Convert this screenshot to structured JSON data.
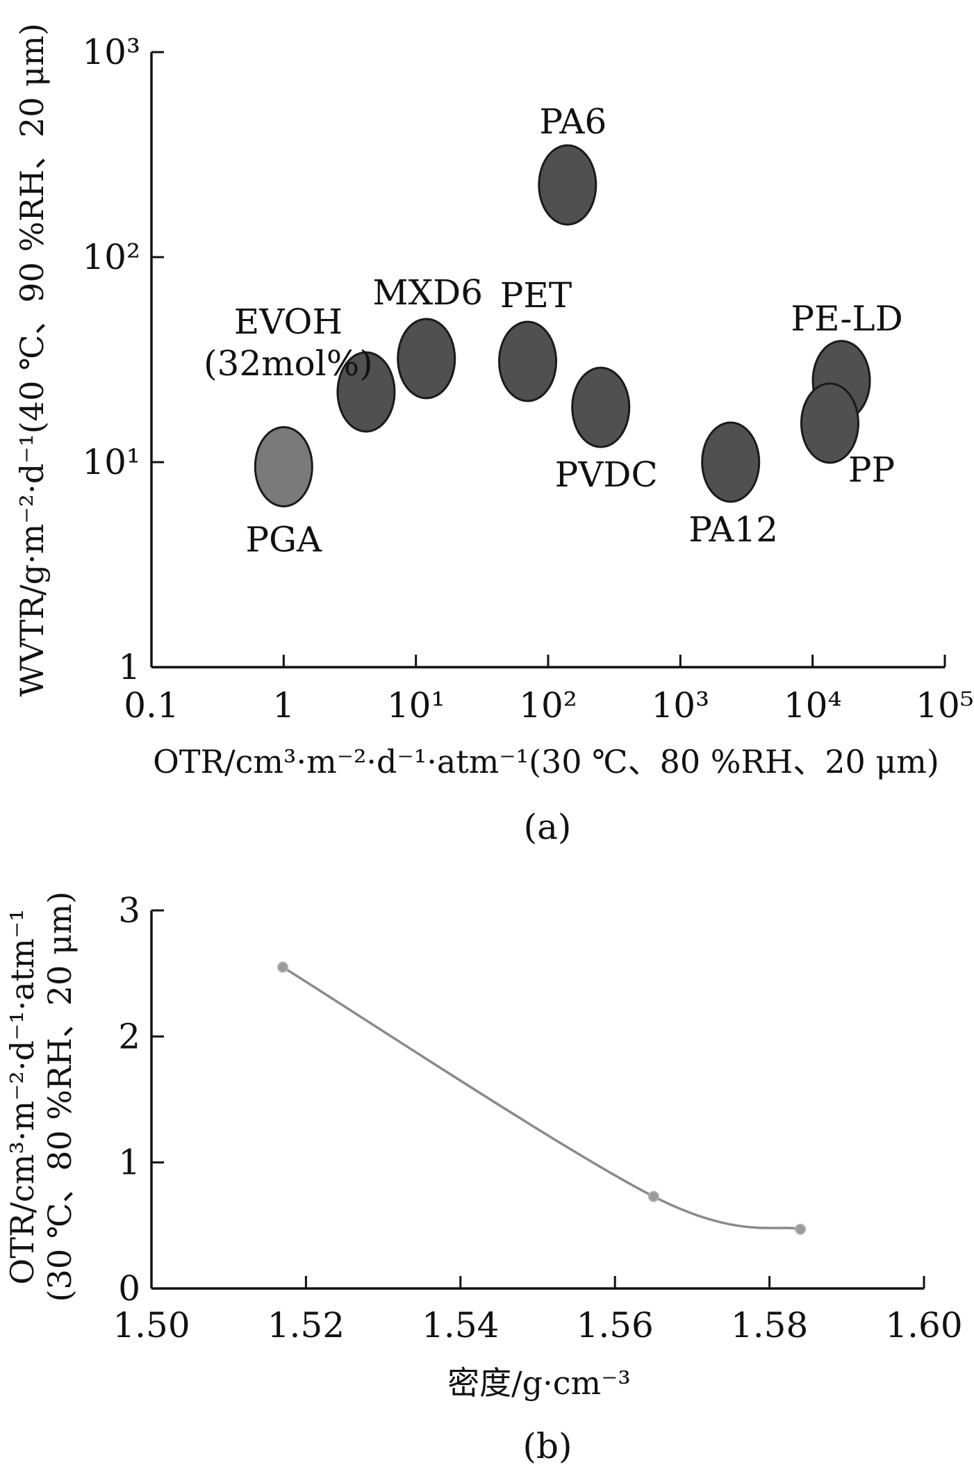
{
  "chart_data": [
    {
      "type": "scatter",
      "caption": "(a)",
      "xlabel": "OTR/cm³·m⁻²·d⁻¹·atm⁻¹(30 ℃、80 %RH、20 μm)",
      "ylabel": "WVTR/g·m⁻²·d⁻¹(40 ℃、90 %RH、20 μm)",
      "xscale": "log",
      "yscale": "log",
      "xlim": [
        0.1,
        100000
      ],
      "ylim": [
        1,
        1000
      ],
      "xticks": [
        "0.1",
        "1",
        "10¹",
        "10²",
        "10³",
        "10⁴",
        "10⁵"
      ],
      "yticks": [
        "1",
        "10¹",
        "10²",
        "10³"
      ],
      "points": [
        {
          "label": "PGA",
          "x": 1.0,
          "y": 9.5,
          "color": "#7a7a7a"
        },
        {
          "label": "EVOH (32mol%)",
          "x": 4.2,
          "y": 22,
          "color": "#505050"
        },
        {
          "label": "MXD6",
          "x": 12,
          "y": 32,
          "color": "#505050"
        },
        {
          "label": "PET",
          "x": 70,
          "y": 31,
          "color": "#505050"
        },
        {
          "label": "PA6",
          "x": 140,
          "y": 225,
          "color": "#505050"
        },
        {
          "label": "PVDC",
          "x": 250,
          "y": 18.5,
          "color": "#505050"
        },
        {
          "label": "PA12",
          "x": 2400,
          "y": 10,
          "color": "#505050"
        },
        {
          "label": "PE-LD",
          "x": 16500,
          "y": 25,
          "color": "#505050"
        },
        {
          "label": "PP",
          "x": 13500,
          "y": 15.5,
          "color": "#505050"
        }
      ]
    },
    {
      "type": "line",
      "caption": "(b)",
      "xlabel": "密度/g·cm⁻³",
      "ylabel_line1": "OTR/cm³·m⁻²·d⁻¹·atm⁻¹",
      "ylabel_line2": "(30 ℃、80 %RH、20 μm)",
      "xlim": [
        1.5,
        1.6
      ],
      "ylim": [
        0,
        3
      ],
      "xticks": [
        "1.50",
        "1.52",
        "1.54",
        "1.56",
        "1.58",
        "1.60"
      ],
      "yticks": [
        "0",
        "1",
        "2",
        "3"
      ],
      "series": [
        {
          "x": [
            1.517,
            1.565,
            1.584
          ],
          "y": [
            2.55,
            0.73,
            0.47
          ],
          "color": "#8a8a8a"
        }
      ]
    }
  ]
}
